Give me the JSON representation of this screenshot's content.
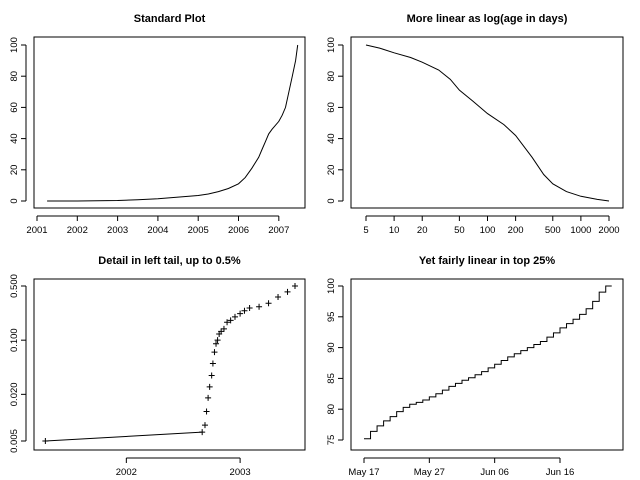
{
  "chart_data": [
    {
      "type": "line",
      "title": "Standard Plot",
      "xlabel": "",
      "ylabel": "",
      "x_scale": "linear",
      "xlim": [
        "2001-01",
        "2007-07"
      ],
      "ylim": [
        0,
        100
      ],
      "x_ticks": [
        "2001",
        "2002",
        "2003",
        "2004",
        "2005",
        "2006",
        "2007"
      ],
      "y_ticks": [
        "0",
        "20",
        "40",
        "60",
        "80",
        "100"
      ],
      "grid": false,
      "series": [
        {
          "x": [
            "2001-04",
            "2002-01",
            "2003-01",
            "2003-07",
            "2004-01",
            "2004-07",
            "2005-01",
            "2005-04",
            "2005-07",
            "2005-10",
            "2006-01",
            "2006-03",
            "2006-05",
            "2006-07",
            "2006-08",
            "2006-09",
            "2006-10",
            "2006-11",
            "2007-01",
            "2007-02",
            "2007-03",
            "2007-04",
            "2007-05",
            "2007-06",
            "2007-06-20"
          ],
          "y": [
            0,
            0,
            0.3,
            0.8,
            1.5,
            2.5,
            3.5,
            4.5,
            6,
            8,
            11,
            15,
            21,
            28,
            33,
            38,
            43,
            46,
            51,
            55,
            60,
            70,
            80,
            90,
            100
          ]
        }
      ]
    },
    {
      "type": "line",
      "title": "More linear as log(age in days)",
      "xlabel": "",
      "ylabel": "",
      "x_scale": "log",
      "xlim": [
        4,
        2700
      ],
      "ylim": [
        0,
        100
      ],
      "x_ticks": [
        "5",
        "10",
        "20",
        "50",
        "100",
        "200",
        "500",
        "1000",
        "2000"
      ],
      "y_ticks": [
        "0",
        "20",
        "40",
        "60",
        "80",
        "100"
      ],
      "grid": false,
      "series": [
        {
          "x": [
            5,
            7,
            10,
            15,
            20,
            30,
            40,
            50,
            70,
            100,
            150,
            200,
            300,
            400,
            500,
            700,
            1000,
            1500,
            2000
          ],
          "y": [
            100,
            98,
            95,
            92,
            89,
            84,
            78,
            71,
            64,
            56,
            49,
            42,
            28,
            17,
            11,
            6,
            3,
            1,
            0
          ]
        }
      ]
    },
    {
      "type": "scatter",
      "title": "Detail in left tail, up to 0.5%",
      "xlabel": "",
      "ylabel": "",
      "x_scale": "linear",
      "y_scale": "log",
      "ylim": [
        0.004,
        0.55
      ],
      "x_ticks": [
        "2002",
        "2003"
      ],
      "y_ticks": [
        "0.005",
        "0.020",
        "0.100",
        "0.500"
      ],
      "grid": false,
      "series": [
        {
          "x": [
            "2001-04-15",
            "2002-09-01",
            "2002-09-10",
            "2002-09-15",
            "2002-09-20",
            "2002-09-25",
            "2002-10-01",
            "2002-10-05",
            "2002-10-10",
            "2002-10-15",
            "2002-10-20",
            "2002-10-25",
            "2002-11-01",
            "2002-11-10",
            "2002-11-20",
            "2002-12-01",
            "2002-12-15",
            "2003-01-01",
            "2003-01-15",
            "2003-02-01",
            "2003-03-01",
            "2003-04-01",
            "2003-05-01",
            "2003-06-01",
            "2003-06-25"
          ],
          "y": [
            0.005,
            0.0065,
            0.008,
            0.012,
            0.018,
            0.025,
            0.035,
            0.05,
            0.07,
            0.09,
            0.1,
            0.12,
            0.13,
            0.14,
            0.17,
            0.18,
            0.2,
            0.22,
            0.24,
            0.26,
            0.27,
            0.3,
            0.36,
            0.42,
            0.5
          ]
        }
      ]
    },
    {
      "type": "line",
      "title": "Yet fairly linear in top 25%",
      "xlabel": "",
      "ylabel": "",
      "x_scale": "date",
      "xlim": [
        "May 15",
        "Jun 25"
      ],
      "ylim": [
        75,
        100
      ],
      "x_ticks": [
        "May 17",
        "May 27",
        "Jun 06",
        "Jun 16"
      ],
      "y_ticks": [
        "75",
        "80",
        "85",
        "90",
        "95",
        "100"
      ],
      "grid": false,
      "step": true,
      "series": [
        {
          "x": [
            "May 17",
            "May 18",
            "May 19",
            "May 20",
            "May 21",
            "May 22",
            "May 23",
            "May 24",
            "May 25",
            "May 26",
            "May 27",
            "May 28",
            "May 29",
            "May 30",
            "May 31",
            "Jun 01",
            "Jun 02",
            "Jun 03",
            "Jun 04",
            "Jun 05",
            "Jun 06",
            "Jun 07",
            "Jun 08",
            "Jun 09",
            "Jun 10",
            "Jun 11",
            "Jun 12",
            "Jun 13",
            "Jun 14",
            "Jun 15",
            "Jun 16",
            "Jun 17",
            "Jun 18",
            "Jun 19",
            "Jun 20",
            "Jun 21",
            "Jun 22",
            "Jun 23"
          ],
          "y": [
            75.2,
            76.4,
            77.3,
            78.1,
            78.8,
            79.6,
            80.3,
            80.8,
            81.1,
            81.5,
            82.0,
            82.5,
            83.1,
            83.7,
            84.2,
            84.7,
            85.1,
            85.6,
            86.1,
            86.7,
            87.3,
            87.9,
            88.5,
            89.0,
            89.5,
            90.0,
            90.5,
            91.0,
            91.7,
            92.4,
            93.2,
            93.9,
            94.6,
            95.4,
            96.3,
            97.5,
            99.0,
            100.0
          ]
        }
      ]
    }
  ]
}
